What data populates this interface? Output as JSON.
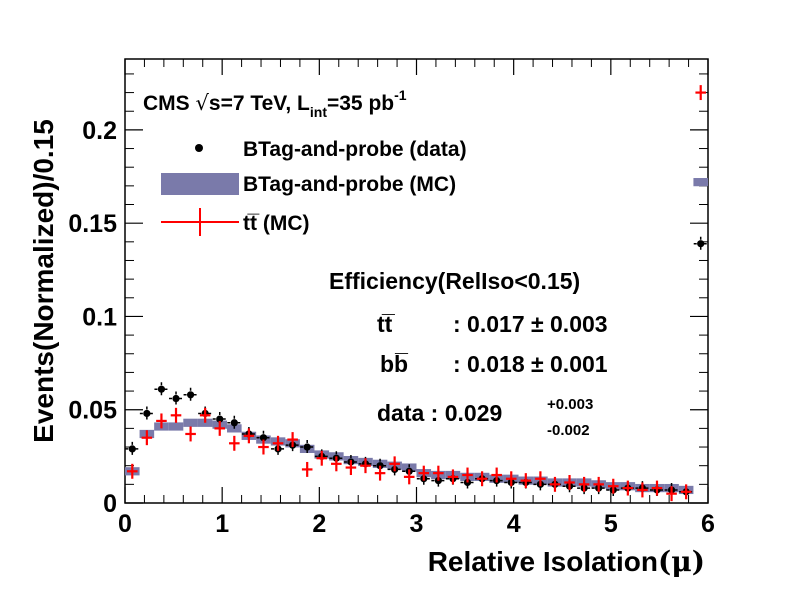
{
  "chart_data": {
    "type": "scatter",
    "xlabel": "Relative Isolation",
    "xlabel_symbol": "(μ)",
    "ylabel": "Events(Normalized)/0.15",
    "xlim": [
      0,
      6
    ],
    "ylim": [
      0,
      0.238
    ],
    "x_ticks": [
      "0",
      "1",
      "2",
      "3",
      "4",
      "5",
      "6"
    ],
    "y_ticks": [
      "0",
      "0.05",
      "0.1",
      "0.15",
      "0.2"
    ],
    "y_tick_values": [
      0,
      0.05,
      0.1,
      0.15,
      0.2
    ],
    "bin_width": 0.15,
    "cms_label": {
      "prefix": "CMS ",
      "sqrt": "√",
      "s_energy": "s=7 TeV, L",
      "sub": "int",
      "lumi": "=35 pb",
      "sup": "-1"
    },
    "legend": [
      {
        "text": "BTag-and-probe (data)",
        "style": "dot"
      },
      {
        "text": "BTag-and-probe (MC)",
        "style": "band"
      },
      {
        "text": " (MC)",
        "prefix": "tt̅",
        "style": "cross"
      }
    ],
    "efficiency": {
      "title": "Efficiency(RelIso<0.15)",
      "tt_label": "tt̅",
      "tt_value": ": 0.017 ± 0.003",
      "bb_label": "bb̅",
      "bb_value": ": 0.018 ± 0.001",
      "data_label": "data : 0.029",
      "data_up": "+0.003",
      "data_down": "-0.002"
    },
    "series": [
      {
        "name": "BTag-and-probe (data)",
        "style": "dot",
        "color": "#000000",
        "x": [
          0.075,
          0.225,
          0.375,
          0.525,
          0.675,
          0.825,
          0.975,
          1.125,
          1.275,
          1.425,
          1.575,
          1.725,
          1.875,
          2.025,
          2.175,
          2.325,
          2.475,
          2.625,
          2.775,
          2.925,
          3.075,
          3.225,
          3.375,
          3.525,
          3.675,
          3.825,
          3.975,
          4.125,
          4.275,
          4.425,
          4.575,
          4.725,
          4.875,
          5.025,
          5.175,
          5.325,
          5.475,
          5.625,
          5.775,
          5.925
        ],
        "y": [
          0.029,
          0.048,
          0.061,
          0.056,
          0.058,
          0.048,
          0.045,
          0.043,
          0.037,
          0.035,
          0.029,
          0.031,
          0.03,
          0.025,
          0.024,
          0.022,
          0.021,
          0.02,
          0.018,
          0.017,
          0.013,
          0.012,
          0.013,
          0.011,
          0.013,
          0.012,
          0.011,
          0.011,
          0.01,
          0.01,
          0.009,
          0.008,
          0.008,
          0.007,
          0.008,
          0.008,
          0.007,
          0.007,
          0.006,
          0.139
        ]
      },
      {
        "name": "BTag-and-probe (MC)",
        "style": "band",
        "color": "#7a7aaa",
        "x": [
          0.075,
          0.225,
          0.375,
          0.525,
          0.675,
          0.825,
          0.975,
          1.125,
          1.275,
          1.425,
          1.575,
          1.725,
          1.875,
          2.025,
          2.175,
          2.325,
          2.475,
          2.625,
          2.775,
          2.925,
          3.075,
          3.225,
          3.375,
          3.525,
          3.675,
          3.825,
          3.975,
          4.125,
          4.275,
          4.425,
          4.575,
          4.725,
          4.875,
          5.025,
          5.175,
          5.325,
          5.475,
          5.625,
          5.775,
          5.925
        ],
        "y": [
          0.017,
          0.037,
          0.041,
          0.041,
          0.043,
          0.043,
          0.042,
          0.04,
          0.036,
          0.034,
          0.033,
          0.032,
          0.029,
          0.026,
          0.025,
          0.023,
          0.022,
          0.021,
          0.02,
          0.019,
          0.016,
          0.015,
          0.015,
          0.014,
          0.014,
          0.013,
          0.013,
          0.012,
          0.012,
          0.011,
          0.011,
          0.011,
          0.01,
          0.009,
          0.009,
          0.008,
          0.008,
          0.008,
          0.007,
          0.172
        ],
        "band_half_height": 0.0022
      },
      {
        "name": "tt (MC)",
        "style": "cross",
        "color": "#ff0000",
        "x": [
          0.075,
          0.225,
          0.375,
          0.525,
          0.675,
          0.825,
          0.975,
          1.125,
          1.275,
          1.425,
          1.575,
          1.725,
          1.875,
          2.025,
          2.175,
          2.325,
          2.475,
          2.625,
          2.775,
          2.925,
          3.075,
          3.225,
          3.375,
          3.525,
          3.675,
          3.825,
          3.975,
          4.125,
          4.275,
          4.425,
          4.575,
          4.725,
          4.875,
          5.025,
          5.175,
          5.325,
          5.475,
          5.625,
          5.775,
          5.925
        ],
        "y": [
          0.017,
          0.035,
          0.044,
          0.047,
          0.037,
          0.047,
          0.04,
          0.032,
          0.036,
          0.03,
          0.032,
          0.034,
          0.018,
          0.024,
          0.021,
          0.019,
          0.02,
          0.016,
          0.021,
          0.014,
          0.016,
          0.016,
          0.014,
          0.015,
          0.013,
          0.015,
          0.013,
          0.012,
          0.013,
          0.01,
          0.011,
          0.01,
          0.01,
          0.009,
          0.008,
          0.007,
          0.008,
          0.005,
          0.006,
          0.22
        ],
        "y_err": 0.004
      }
    ]
  }
}
